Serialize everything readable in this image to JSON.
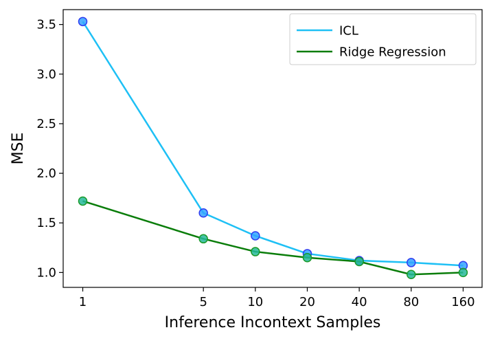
{
  "chart_data": {
    "type": "line",
    "x": [
      1,
      5,
      10,
      20,
      40,
      80,
      160
    ],
    "x_tick_labels": [
      "1",
      "5",
      "10",
      "20",
      "40",
      "80",
      "160"
    ],
    "x_scale": "log",
    "xlabel": "Inference Incontext Samples",
    "ylabel": "MSE",
    "ylim": [
      0.85,
      3.65
    ],
    "y_ticks": [
      1.0,
      1.5,
      2.0,
      2.5,
      3.0,
      3.5
    ],
    "y_tick_labels": [
      "1.0",
      "1.5",
      "2.0",
      "2.5",
      "3.0",
      "3.5"
    ],
    "grid": false,
    "legend_position": "top-right",
    "series": [
      {
        "name": "ICL",
        "values": [
          3.53,
          1.6,
          1.37,
          1.19,
          1.12,
          1.1,
          1.07
        ],
        "line_color": "#1ec0f5",
        "marker_face": "#33a3ff",
        "marker_edge": "#2f3cf0"
      },
      {
        "name": "Ridge Regression",
        "values": [
          1.72,
          1.34,
          1.21,
          1.15,
          1.11,
          0.98,
          1.0
        ],
        "line_color": "#0a7d0a",
        "marker_face": "#26b89a",
        "marker_edge": "#1a9a2a"
      }
    ]
  }
}
